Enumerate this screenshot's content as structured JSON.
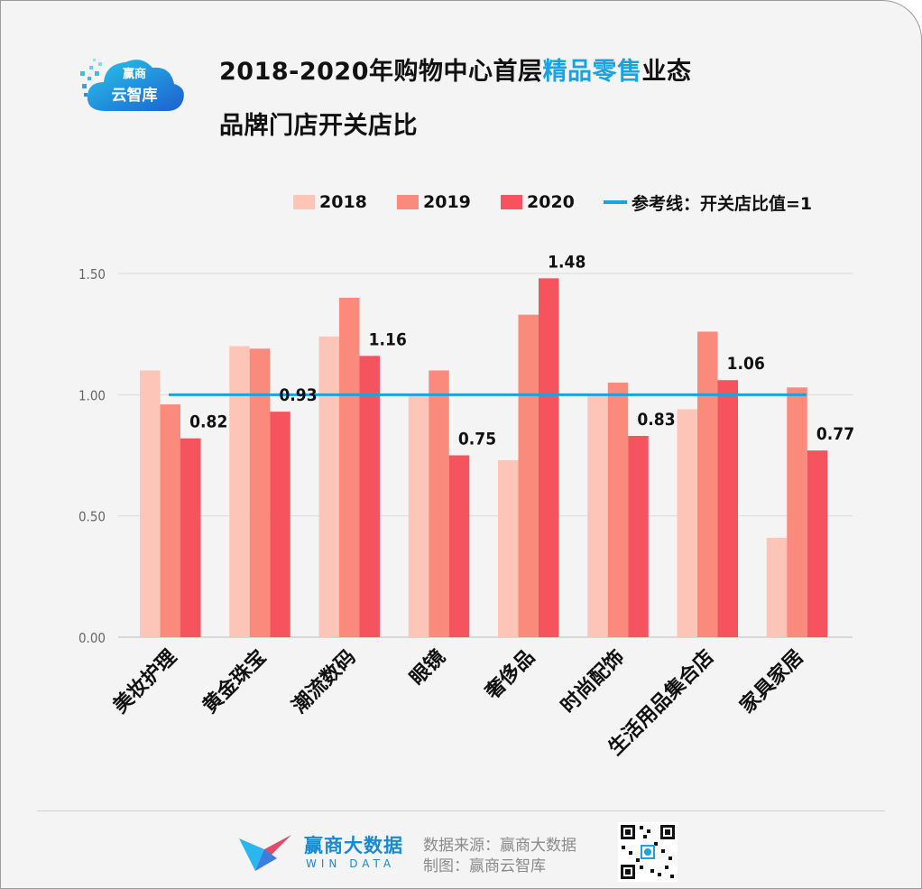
{
  "logo": {
    "line1": "赢商",
    "line2": "云智库"
  },
  "footer": {
    "brand": "赢商大数据",
    "brand_en": "WIN DATA",
    "source": "数据来源：赢商大数据",
    "maker": "制图：赢商云智库"
  },
  "chart_data": {
    "type": "bar",
    "title": "2018-2020年购物中心首层精品零售业态品牌门店开关店比",
    "title_parts": [
      "2018-2020年购物中心首层",
      "精品零售",
      "业态"
    ],
    "title_line2": "品牌门店开关店比",
    "categories": [
      "美妆护理",
      "黄金珠宝",
      "潮流数码",
      "眼镜",
      "奢侈品",
      "时尚配饰",
      "生活用品集合店",
      "家具家居"
    ],
    "series": [
      {
        "name": "2018",
        "color": "#fdc5b8",
        "values": [
          1.1,
          1.2,
          1.24,
          1.0,
          0.73,
          1.0,
          0.94,
          0.41
        ]
      },
      {
        "name": "2019",
        "color": "#f98a7c",
        "values": [
          0.96,
          1.19,
          1.4,
          1.1,
          1.33,
          1.05,
          1.26,
          1.03
        ]
      },
      {
        "name": "2020",
        "color": "#f5535e",
        "values": [
          0.82,
          0.93,
          1.16,
          0.75,
          1.48,
          0.83,
          1.06,
          0.77
        ],
        "labeled": true
      }
    ],
    "data_labels": [
      "0.82",
      "0.93",
      "1.16",
      "0.75",
      "1.48",
      "0.83",
      "1.06",
      "0.77"
    ],
    "reference_line": {
      "label": "参考线：开关店比值=1",
      "value": 1,
      "color": "#1aa3e0"
    },
    "ylim": [
      0,
      1.5
    ],
    "yticks": [
      "0.00",
      "0.50",
      "1.00",
      "1.50"
    ],
    "grid": true,
    "legend_position": "top"
  }
}
